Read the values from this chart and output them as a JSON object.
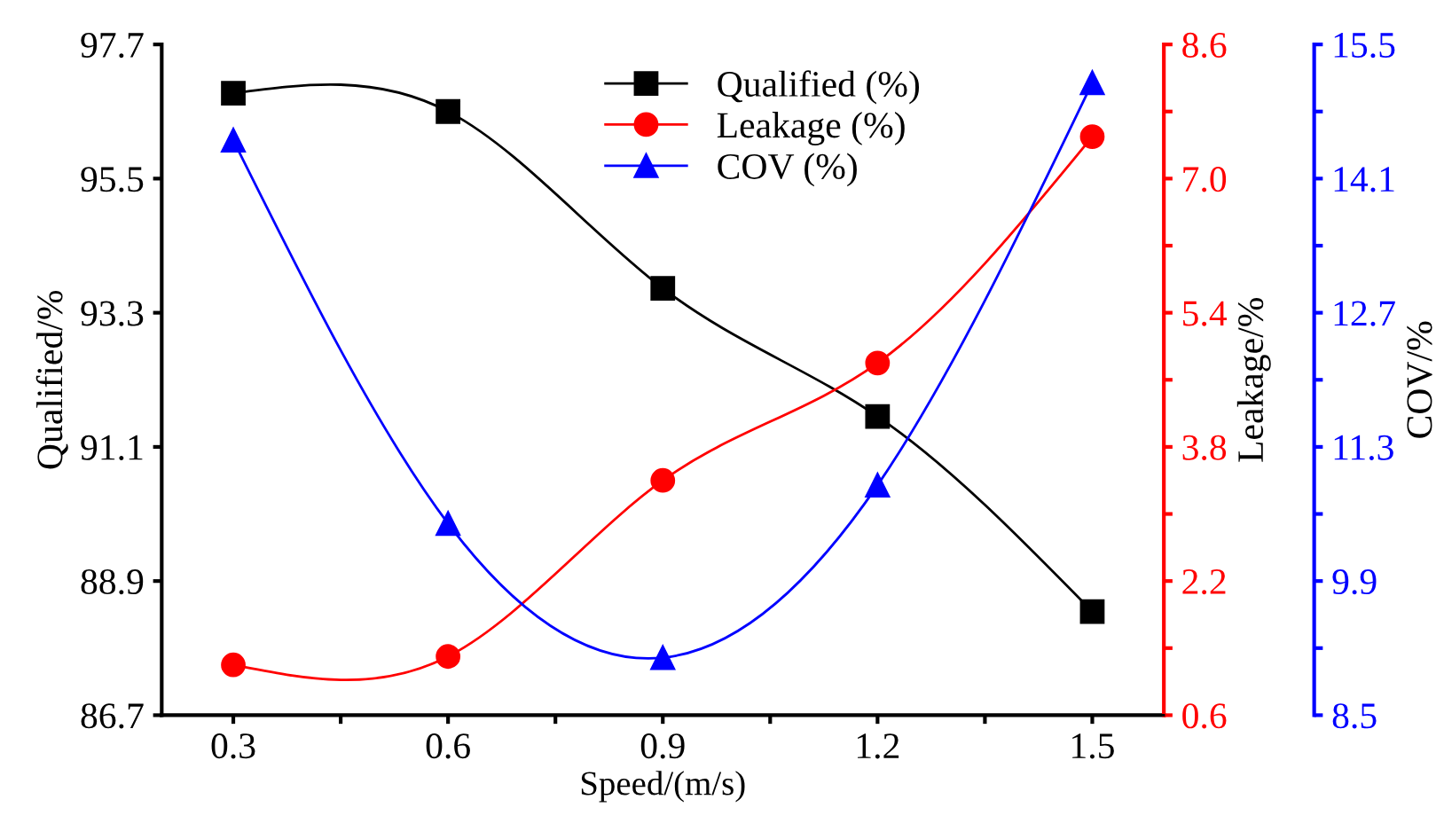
{
  "chart_data": {
    "type": "line",
    "xlabel": "Speed/(m/s)",
    "ylabel": "Qualified/%",
    "y2label": "Leakage/%",
    "y3label": "COV/%",
    "x": [
      0.3,
      0.6,
      0.9,
      1.2,
      1.5
    ],
    "xlim": [
      0.2,
      1.6
    ],
    "xticks": [
      0.3,
      {
        "value": 0.45,
        "label": null
      },
      0.6,
      {
        "value": 0.75,
        "label": null
      },
      0.9,
      {
        "value": 1.05,
        "label": null
      },
      1.2,
      {
        "value": 1.35,
        "label": null
      },
      1.5
    ],
    "ylim": [
      86.7,
      97.7
    ],
    "yticks": [
      86.7,
      88.9,
      91.1,
      93.3,
      95.5,
      97.7
    ],
    "y2lim": [
      0.6,
      8.6
    ],
    "y2ticks": [
      0.6,
      {
        "value": 1.4,
        "label": null
      },
      2.2,
      {
        "value": 3.0,
        "label": null
      },
      3.8,
      {
        "value": 4.6,
        "label": null
      },
      5.4,
      {
        "value": 6.2,
        "label": null
      },
      {
        "value": 7.0,
        "label": "7.0"
      },
      {
        "value": 7.8,
        "label": null
      },
      8.6
    ],
    "y3lim": [
      8.5,
      15.5
    ],
    "y3ticks": [
      8.5,
      {
        "value": 9.2,
        "label": null
      },
      9.9,
      {
        "value": 10.6,
        "label": null
      },
      11.3,
      {
        "value": 12.0,
        "label": null
      },
      12.7,
      {
        "value": 13.4,
        "label": null
      },
      14.1,
      {
        "value": 14.8,
        "label": null
      },
      15.5
    ],
    "grid": false,
    "legend": "top",
    "line_style": "solid",
    "series": [
      {
        "name": "Qualified (%)",
        "color": "#000000",
        "marker": "square",
        "values": [
          96.9,
          96.6,
          93.7,
          91.6,
          88.4
        ]
      },
      {
        "name": "Leakage (%)",
        "color": "#ff0000",
        "marker": "circle",
        "axis": "y2",
        "values": [
          1.2,
          1.3,
          3.4,
          4.8,
          7.5
        ]
      },
      {
        "name": "COV (%)",
        "color": "#0000ff",
        "marker": "triangle",
        "axis": "y3",
        "values": [
          14.5,
          10.5,
          9.1,
          10.9,
          15.1
        ]
      }
    ]
  }
}
